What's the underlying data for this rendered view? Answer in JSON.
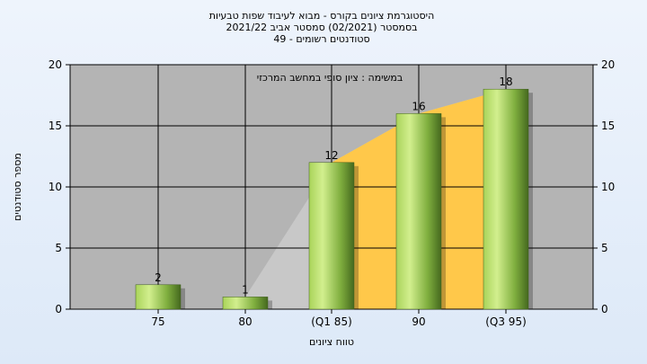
{
  "chart_data": {
    "type": "bar",
    "title_lines": [
      "היסטוגרמת ציונים בקורס - מבוא לעיבוד שפות טבעיות",
      "בסמסטר  (02/2021)  סמסטר אביב 2021/22",
      "סטודנטים רשומים - 49"
    ],
    "annotation": "במשימה : ציון סופי במחשב המרכזי",
    "xlabel": "טווח ציונים",
    "ylabel": "מספר סטודנטים",
    "categories": [
      "75",
      "80",
      "(Q1 85)",
      "90",
      "(Q3 95)"
    ],
    "values": [
      2,
      1,
      12,
      16,
      18
    ],
    "ylim": [
      0,
      20
    ],
    "yticks": [
      "0",
      "5",
      "10",
      "15",
      "20"
    ],
    "grid": true,
    "background_area": {
      "gray_start_category": "80",
      "gold_start_category": "(Q1 85)"
    },
    "colors": {
      "plot_bg": "#b4b4b4",
      "bar_light": "#c6e87c",
      "bar_dark": "#4f7327",
      "gold_area": "#ffc84a",
      "gray_area": "#c8c8c8"
    }
  }
}
